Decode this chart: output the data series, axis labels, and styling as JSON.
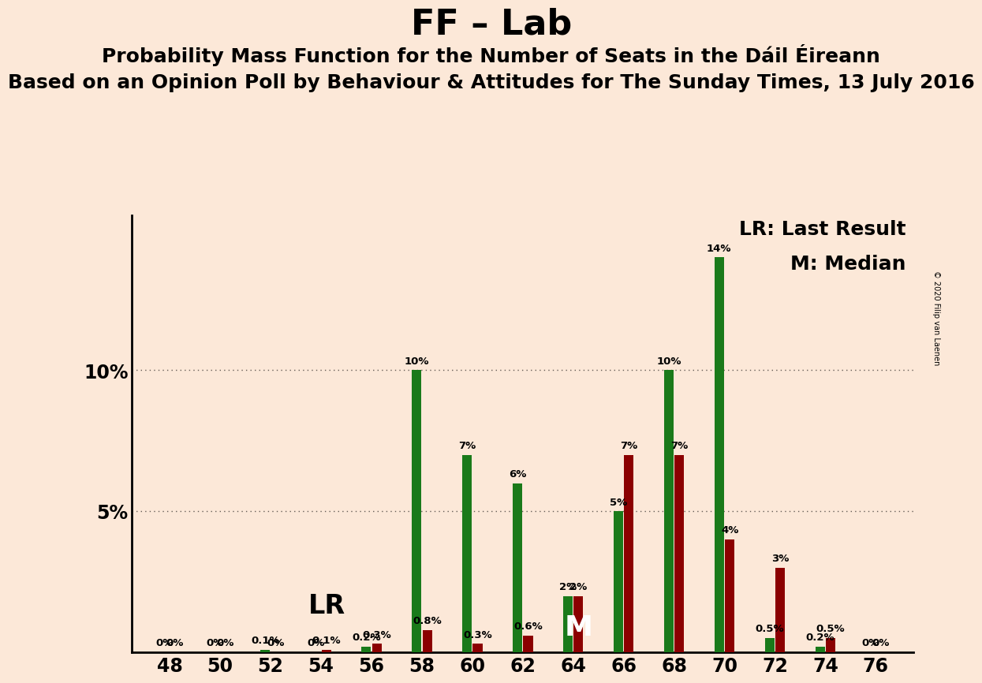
{
  "title": "FF – Lab",
  "subtitle1": "Probability Mass Function for the Number of Seats in the Dáil Éireann",
  "subtitle2": "Based on an Opinion Poll by Behaviour & Attitudes for The Sunday Times, 13 July 2016",
  "copyright": "© 2020 Filip van Laenen",
  "background_color": "#fce8d8",
  "seats": [
    48,
    50,
    52,
    54,
    56,
    58,
    60,
    62,
    64,
    66,
    68,
    70,
    72,
    74,
    76
  ],
  "green_values": [
    0.0,
    0.0,
    0.1,
    0.0,
    0.2,
    10.0,
    7.0,
    6.0,
    2.0,
    5.0,
    10.0,
    14.0,
    0.5,
    0.2,
    0.0
  ],
  "red_values": [
    0.0,
    0.0,
    0.0,
    0.1,
    0.3,
    0.8,
    0.3,
    0.6,
    2.0,
    7.0,
    7.0,
    4.0,
    3.0,
    0.5,
    0.0
  ],
  "green_labels": [
    "0%",
    "0%",
    "0.1%",
    "0%",
    "0.2%",
    "10%",
    "7%",
    "6%",
    "2%",
    "5%",
    "10%",
    "14%",
    "0.5%",
    "0.2%",
    "0%"
  ],
  "red_labels": [
    "0%",
    "0%",
    "0%",
    "0.1%",
    "0.3%",
    "0.8%",
    "0.3%",
    "0.6%",
    "2%",
    "7%",
    "7%",
    "4%",
    "3%",
    "0.5%",
    "0%"
  ],
  "green_color": "#1a7a1a",
  "red_color": "#8b0000",
  "lr_label": "LR: Last Result",
  "m_label": "M: Median",
  "lr_seat_idx": 3,
  "m_seat_idx": 8,
  "ylim": [
    0,
    15.5
  ],
  "title_fontsize": 32,
  "subtitle1_fontsize": 18,
  "subtitle2_fontsize": 18
}
